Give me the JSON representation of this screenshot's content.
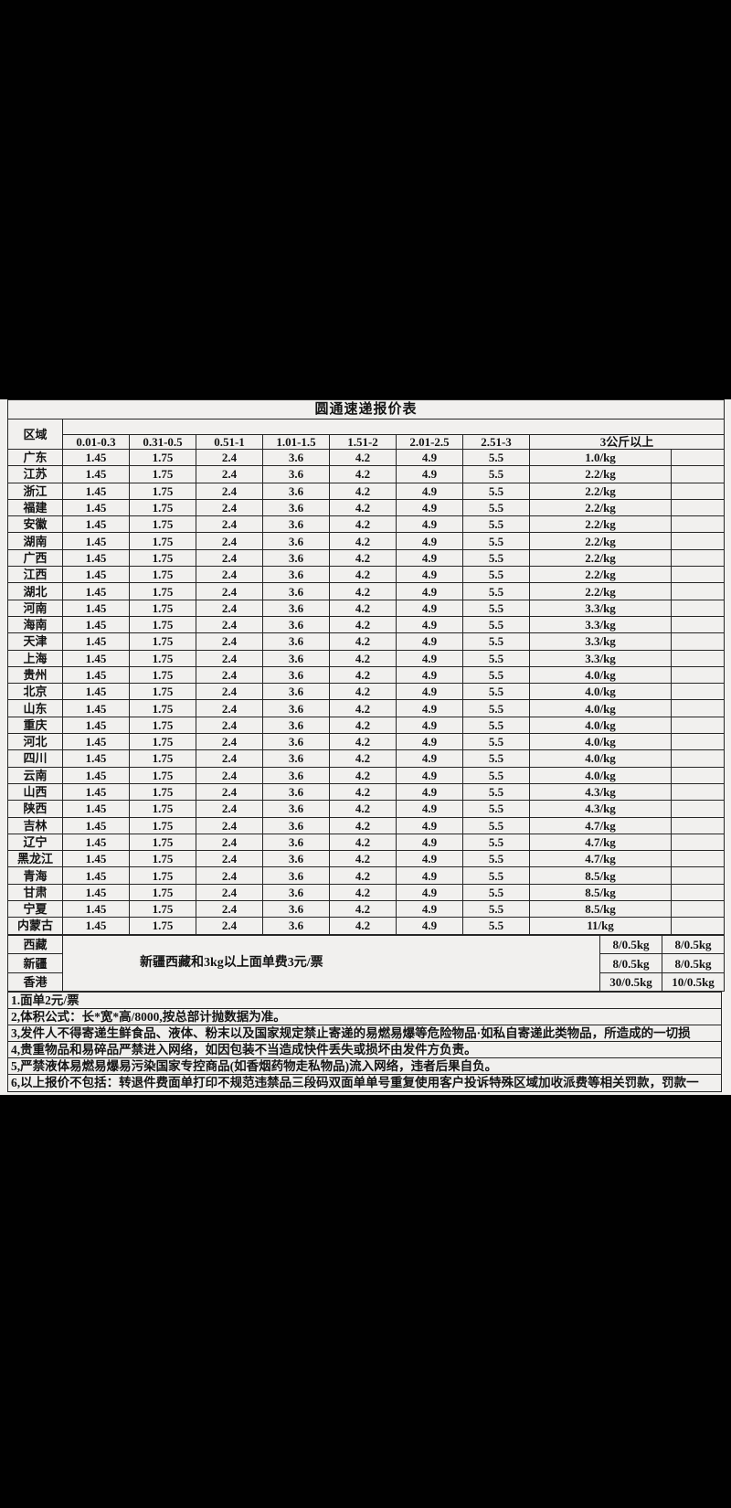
{
  "colors": {
    "letterbox": "#010101",
    "paper": "#f1f0ee",
    "ink": "#141414",
    "grid": "#262626"
  },
  "chart_data": {
    "type": "table",
    "title": "圆通速递报价表",
    "region_header": "区域",
    "weight_headers": [
      "0.01-0.3",
      "0.31-0.5",
      "0.51-1",
      "1.01-1.5",
      "1.51-2",
      "2.01-2.5",
      "2.51-3"
    ],
    "over_3kg_header": "3公斤以上",
    "base_rates_all_provinces": [
      "1.45",
      "1.75",
      "2.4",
      "3.6",
      "4.2",
      "4.9",
      "5.5"
    ],
    "provinces": [
      {
        "region": "广东",
        "over_3kg": "1.0/kg"
      },
      {
        "region": "江苏",
        "over_3kg": "2.2/kg"
      },
      {
        "region": "浙江",
        "over_3kg": "2.2/kg"
      },
      {
        "region": "福建",
        "over_3kg": "2.2/kg"
      },
      {
        "region": "安徽",
        "over_3kg": "2.2/kg"
      },
      {
        "region": "湖南",
        "over_3kg": "2.2/kg"
      },
      {
        "region": "广西",
        "over_3kg": "2.2/kg"
      },
      {
        "region": "江西",
        "over_3kg": "2.2/kg"
      },
      {
        "region": "湖北",
        "over_3kg": "2.2/kg"
      },
      {
        "region": "河南",
        "over_3kg": "3.3/kg"
      },
      {
        "region": "海南",
        "over_3kg": "3.3/kg"
      },
      {
        "region": "天津",
        "over_3kg": "3.3/kg"
      },
      {
        "region": "上海",
        "over_3kg": "3.3/kg"
      },
      {
        "region": "贵州",
        "over_3kg": "4.0/kg"
      },
      {
        "region": "北京",
        "over_3kg": "4.0/kg"
      },
      {
        "region": "山东",
        "over_3kg": "4.0/kg"
      },
      {
        "region": "重庆",
        "over_3kg": "4.0/kg"
      },
      {
        "region": "河北",
        "over_3kg": "4.0/kg"
      },
      {
        "region": "四川",
        "over_3kg": "4.0/kg"
      },
      {
        "region": "云南",
        "over_3kg": "4.0/kg"
      },
      {
        "region": "山西",
        "over_3kg": "4.3/kg"
      },
      {
        "region": "陕西",
        "over_3kg": "4.3/kg"
      },
      {
        "region": "吉林",
        "over_3kg": "4.7/kg"
      },
      {
        "region": "辽宁",
        "over_3kg": "4.7/kg"
      },
      {
        "region": "黑龙江",
        "over_3kg": "4.7/kg"
      },
      {
        "region": "青海",
        "over_3kg": "8.5/kg"
      },
      {
        "region": "甘肃",
        "over_3kg": "8.5/kg"
      },
      {
        "region": "宁夏",
        "over_3kg": "8.5/kg"
      },
      {
        "region": "内蒙古",
        "over_3kg": "11/kg"
      }
    ],
    "surcharge_note": "新疆西藏和3kg以上面单费3元/票",
    "special_rows": [
      {
        "region": "西藏",
        "price1": "8/0.5kg",
        "price2": "8/0.5kg"
      },
      {
        "region": "新疆",
        "price1": "8/0.5kg",
        "price2": "8/0.5kg"
      },
      {
        "region": "香港",
        "price1": "30/0.5kg",
        "price2": "10/0.5kg"
      }
    ],
    "notes": [
      "1.面单2元/票",
      "2,体积公式：长*宽*高/8000,按总部计抛数据为准。",
      "3,发件人不得寄递生鲜食品、液体、粉末以及国家规定禁止寄递的易燃易爆等危险物品·如私自寄递此类物品，所造成的一切损",
      "4,贵重物品和易碎品严禁进入网络，如因包装不当造成快件丢失或损坏由发件方负责。",
      "5,严禁液体易燃易爆易污染国家专控商品(如香烟药物走私物品)流入网络，违者后果自负。",
      "6,以上报价不包括：转退件费面单打印不规范违禁品三段码双面单单号重复使用客户投诉特殊区域加收派费等相关罚款，罚款一"
    ]
  }
}
